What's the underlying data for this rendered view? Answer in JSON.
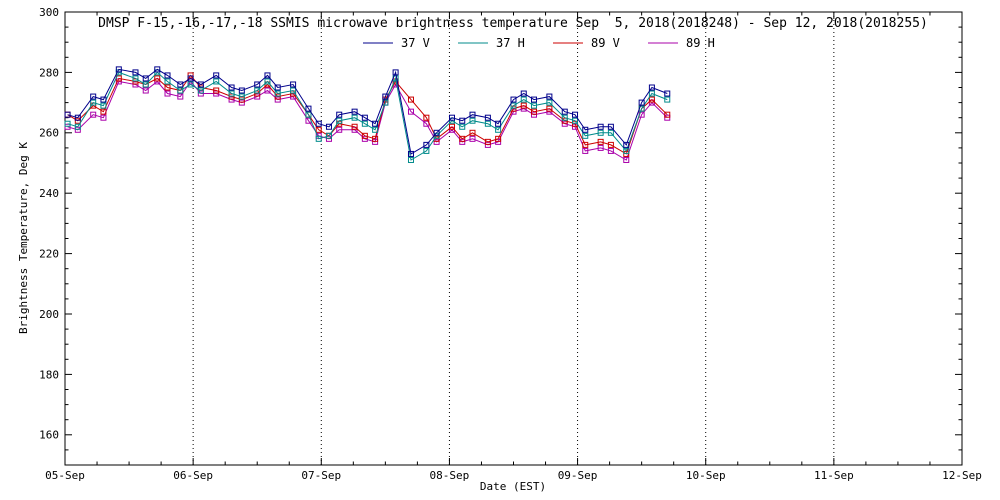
{
  "page": {
    "background_color": "#ffffff",
    "text_color": "#000000"
  },
  "chart_data": {
    "type": "line",
    "title": "DMSP F-15,-16,-17,-18 SSMIS microwave brightness temperature Sep  5, 2018(2018248) - Sep 12, 2018(2018255)",
    "xlabel": "Date (EST)",
    "ylabel": "Brightness Temperature, Deg K",
    "xlim": [
      5,
      12
    ],
    "ylim": [
      150,
      300
    ],
    "y_major_ticks": [
      160,
      180,
      200,
      220,
      240,
      260,
      280,
      300
    ],
    "y_minor_tick_interval": 5,
    "x_tick_labels": [
      "05-Sep",
      "06-Sep",
      "07-Sep",
      "08-Sep",
      "09-Sep",
      "10-Sep",
      "11-Sep",
      "12-Sep"
    ],
    "x_minor_tick_interval_days": 0.25,
    "grid": "vertical-dotted-at-day-boundaries",
    "legend_position": "top-center-inside",
    "marker": "open-square",
    "x": [
      5.02,
      5.1,
      5.22,
      5.3,
      5.42,
      5.55,
      5.63,
      5.72,
      5.8,
      5.9,
      5.98,
      6.06,
      6.18,
      6.3,
      6.38,
      6.5,
      6.58,
      6.66,
      6.78,
      6.9,
      6.98,
      7.06,
      7.14,
      7.26,
      7.34,
      7.42,
      7.5,
      7.58,
      7.7,
      7.82,
      7.9,
      8.02,
      8.1,
      8.18,
      8.3,
      8.38,
      8.5,
      8.58,
      8.66,
      8.78,
      8.9,
      8.98,
      9.06,
      9.18,
      9.26,
      9.38,
      9.5,
      9.58,
      9.7
    ],
    "series": [
      {
        "name": "37 V",
        "color": "#00008b",
        "values": [
          266,
          265,
          272,
          271,
          281,
          280,
          278,
          281,
          279,
          276,
          278,
          276,
          279,
          275,
          274,
          276,
          279,
          275,
          276,
          268,
          263,
          262,
          266,
          267,
          265,
          263,
          272,
          280,
          253,
          256,
          260,
          265,
          264,
          266,
          265,
          263,
          271,
          273,
          271,
          272,
          267,
          266,
          261,
          262,
          262,
          256,
          270,
          275,
          273
        ]
      },
      {
        "name": "37 H",
        "color": "#008b8b",
        "values": [
          263,
          262,
          270,
          269,
          280,
          278,
          276,
          280,
          277,
          274,
          276,
          274,
          277,
          273,
          272,
          274,
          277,
          273,
          274,
          266,
          258,
          259,
          264,
          265,
          263,
          261,
          270,
          278,
          251,
          254,
          259,
          264,
          262,
          264,
          263,
          261,
          269,
          271,
          269,
          270,
          265,
          264,
          259,
          260,
          260,
          254,
          268,
          273,
          271
        ]
      },
      {
        "name": "89 V",
        "color": "#cc0000",
        "values": [
          266,
          264,
          269,
          267,
          278,
          277,
          276,
          278,
          275,
          274,
          279,
          275,
          274,
          272,
          271,
          273,
          276,
          272,
          273,
          266,
          261,
          259,
          263,
          262,
          259,
          258,
          271,
          277,
          271,
          265,
          258,
          262,
          258,
          260,
          257,
          258,
          268,
          269,
          267,
          268,
          264,
          263,
          256,
          257,
          256,
          253,
          268,
          271,
          266
        ]
      },
      {
        "name": "89 H",
        "color": "#aa00aa",
        "values": [
          262,
          261,
          266,
          265,
          277,
          276,
          274,
          277,
          273,
          272,
          277,
          273,
          273,
          271,
          270,
          272,
          274,
          271,
          272,
          264,
          259,
          258,
          261,
          261,
          258,
          257,
          270,
          276,
          267,
          263,
          257,
          261,
          257,
          258,
          256,
          257,
          267,
          268,
          266,
          267,
          263,
          262,
          254,
          255,
          254,
          251,
          266,
          270,
          265
        ]
      }
    ]
  }
}
